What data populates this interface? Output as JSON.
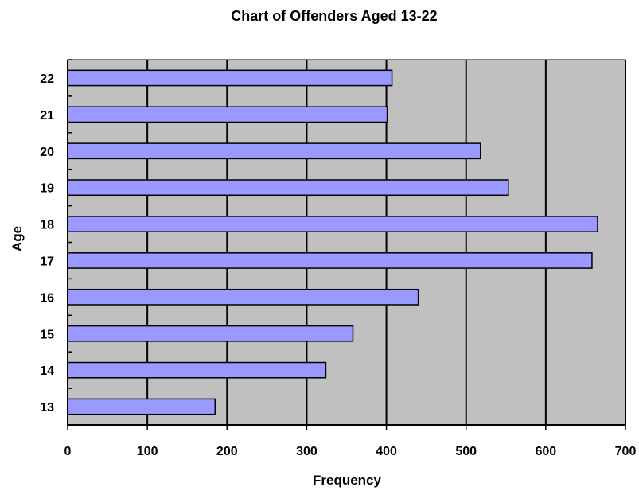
{
  "chart_data": {
    "type": "bar",
    "orientation": "horizontal",
    "title": "Chart of Offenders Aged 13-22",
    "xlabel": "Frequency",
    "ylabel": "Age",
    "categories": [
      "13",
      "14",
      "15",
      "16",
      "17",
      "18",
      "19",
      "20",
      "21",
      "22"
    ],
    "values": [
      185,
      324,
      358,
      440,
      658,
      665,
      553,
      518,
      401,
      407
    ],
    "xlim": [
      0,
      700
    ],
    "xticks": [
      "0",
      "100",
      "200",
      "300",
      "400",
      "500",
      "600",
      "700"
    ],
    "grid": "vertical",
    "legend": "none",
    "colors": {
      "bar_fill": "#9999ff",
      "bar_stroke": "#000000",
      "plot_background": "#c0c0c0",
      "gridline": "#000000"
    }
  }
}
